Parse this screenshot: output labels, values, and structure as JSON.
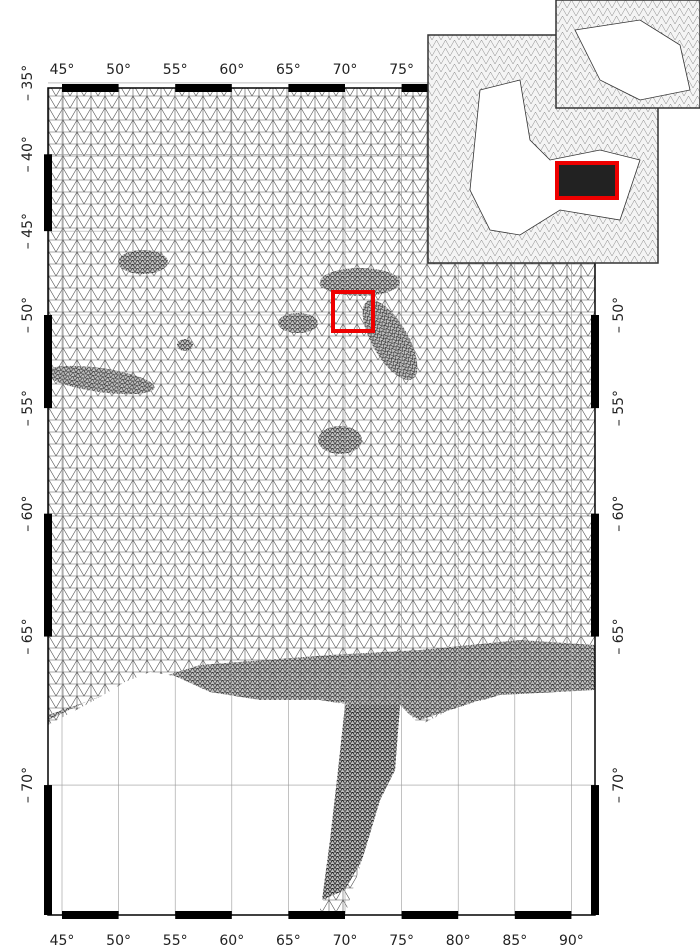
{
  "map": {
    "lon_ticks_bottom": [
      {
        "value": 45,
        "label": "45°"
      },
      {
        "value": 50,
        "label": "50°"
      },
      {
        "value": 55,
        "label": "55°"
      },
      {
        "value": 60,
        "label": "60°"
      },
      {
        "value": 65,
        "label": "65°"
      },
      {
        "value": 70,
        "label": "70°"
      },
      {
        "value": 75,
        "label": "75°"
      },
      {
        "value": 80,
        "label": "80°"
      },
      {
        "value": 85,
        "label": "85°"
      },
      {
        "value": 90,
        "label": "90°"
      }
    ],
    "lon_ticks_top": [
      {
        "value": 45,
        "label": "45°"
      },
      {
        "value": 50,
        "label": "50°"
      },
      {
        "value": 55,
        "label": "55°"
      },
      {
        "value": 60,
        "label": "60°"
      },
      {
        "value": 65,
        "label": "65°"
      },
      {
        "value": 70,
        "label": "70°"
      },
      {
        "value": 75,
        "label": "75°"
      }
    ],
    "lat_ticks_left": [
      {
        "value": -35,
        "label": "– 35°"
      },
      {
        "value": -40,
        "label": "– 40°"
      },
      {
        "value": -45,
        "label": "– 45°"
      },
      {
        "value": -50,
        "label": "– 50°"
      },
      {
        "value": -55,
        "label": "– 55°"
      },
      {
        "value": -60,
        "label": "– 60°"
      },
      {
        "value": -65,
        "label": "– 65°"
      },
      {
        "value": -70,
        "label": "– 70°"
      }
    ],
    "lat_ticks_right": [
      {
        "value": -50,
        "label": "– 50°"
      },
      {
        "value": -55,
        "label": "– 55°"
      },
      {
        "value": -60,
        "label": "– 60°"
      },
      {
        "value": -65,
        "label": "– 65°"
      },
      {
        "value": -70,
        "label": "– 70°"
      }
    ]
  }
}
